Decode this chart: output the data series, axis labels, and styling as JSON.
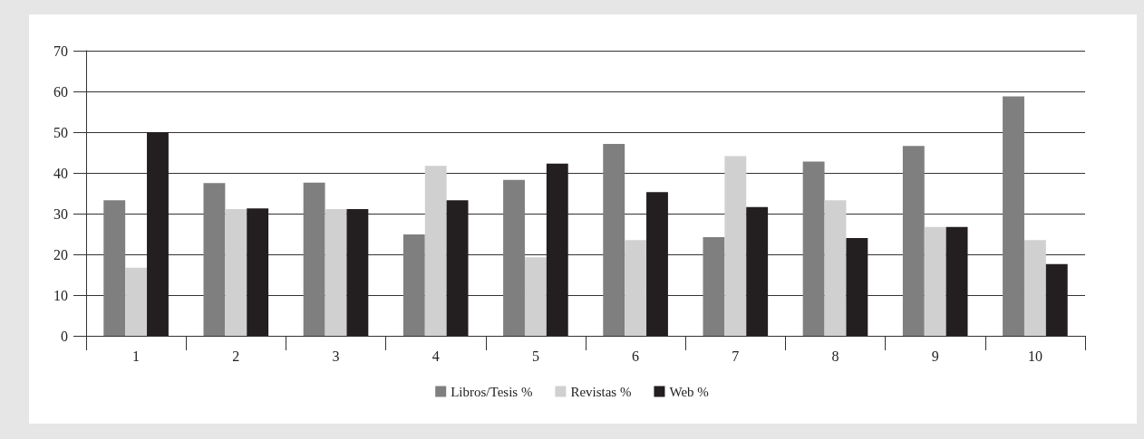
{
  "chart_data": {
    "type": "bar",
    "categories": [
      "1",
      "2",
      "3",
      "4",
      "5",
      "6",
      "7",
      "8",
      "9",
      "10"
    ],
    "series": [
      {
        "name": "Libros/Tesis %",
        "color": "#7f7f7f",
        "values": [
          33.3,
          37.5,
          37.6,
          24.9,
          38.3,
          47.1,
          24.2,
          42.8,
          46.6,
          58.8
        ]
      },
      {
        "name": "Revistas %",
        "color": "#d0d0d0",
        "values": [
          16.7,
          31.1,
          31.1,
          41.7,
          19.3,
          23.5,
          44.1,
          33.3,
          26.7,
          23.5
        ]
      },
      {
        "name": "Web %",
        "color": "#231f20",
        "values": [
          50,
          31.3,
          31.1,
          33.3,
          42.3,
          35.3,
          31.6,
          24,
          26.7,
          17.6
        ]
      }
    ],
    "ylim": [
      0,
      70
    ],
    "yticks": [
      0,
      10,
      20,
      30,
      40,
      50,
      60,
      70
    ],
    "grid": "y",
    "legend": "bottom"
  }
}
